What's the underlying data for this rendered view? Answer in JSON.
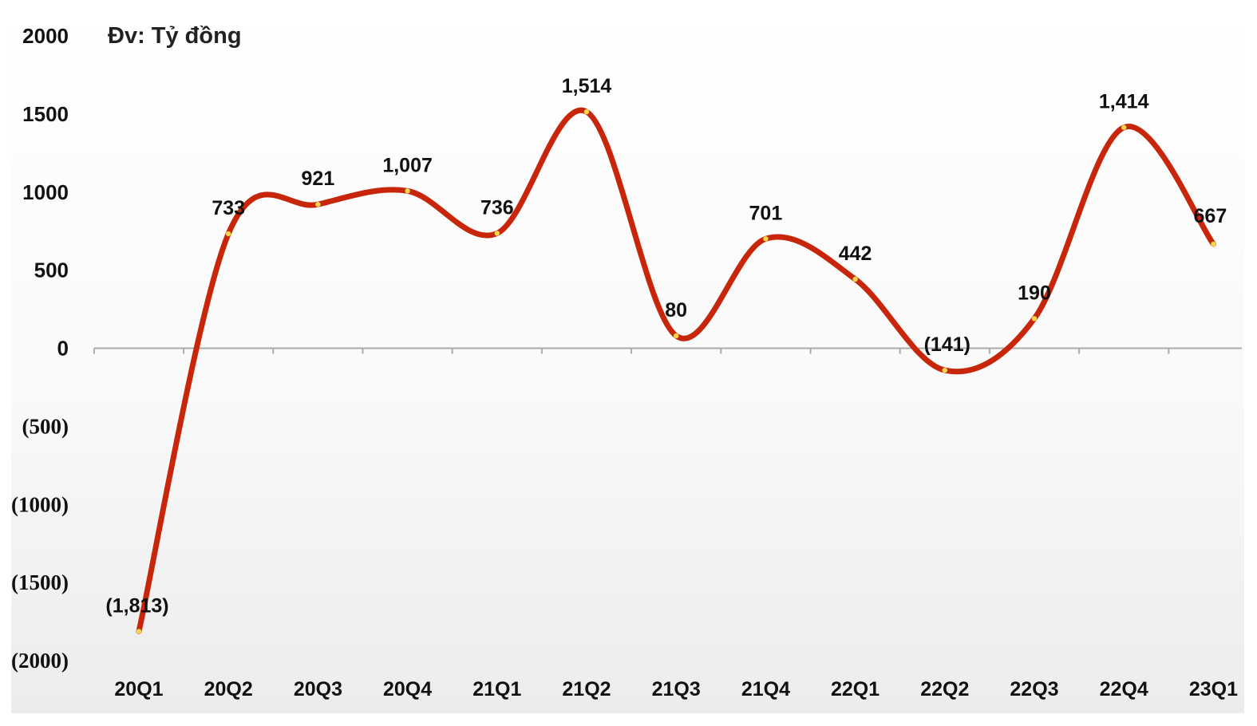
{
  "chart_data": {
    "type": "line",
    "unit_label": "Đv: Tỷ đồng",
    "categories": [
      "20Q1",
      "20Q2",
      "20Q3",
      "20Q4",
      "21Q1",
      "21Q2",
      "21Q3",
      "21Q4",
      "22Q1",
      "22Q2",
      "22Q3",
      "22Q4",
      "23Q1"
    ],
    "series": [
      {
        "values": [
          -1813,
          733,
          921,
          1007,
          736,
          1514,
          80,
          701,
          442,
          -141,
          190,
          1414,
          667
        ],
        "data_labels": [
          "(1,813)",
          "733",
          "921",
          "1,007",
          "736",
          "1,514",
          "80",
          "701",
          "442",
          "(141)",
          "190",
          "1,414",
          "667"
        ],
        "color": "#c8260a"
      }
    ],
    "y_ticks": [
      2000,
      1500,
      1000,
      500,
      0,
      -500,
      -1000,
      -1500,
      -2000
    ],
    "y_tick_labels": [
      "2000",
      "1500",
      "1000",
      "500",
      "0",
      "(500)",
      "(1000)",
      "(1500)",
      "(2000)"
    ],
    "ylim": [
      -2000,
      2000
    ],
    "smooth": true,
    "grid": false,
    "legend": "none",
    "colors": {
      "line": "#c8260a",
      "marker": "#f2d84a",
      "axis": "#aaaaaa"
    }
  }
}
